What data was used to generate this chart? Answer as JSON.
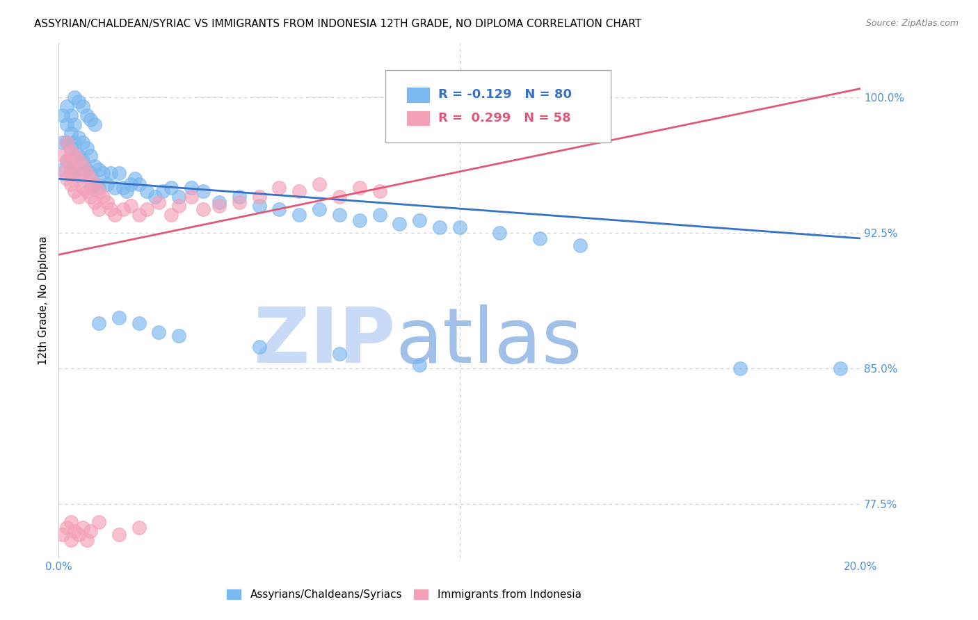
{
  "title": "ASSYRIAN/CHALDEAN/SYRIAC VS IMMIGRANTS FROM INDONESIA 12TH GRADE, NO DIPLOMA CORRELATION CHART",
  "source": "Source: ZipAtlas.com",
  "ylabel": "12th Grade, No Diploma",
  "y_ticks": [
    0.775,
    0.85,
    0.925,
    1.0
  ],
  "y_tick_labels": [
    "77.5%",
    "85.0%",
    "92.5%",
    "100.0%"
  ],
  "xlim": [
    0.0,
    0.2
  ],
  "ylim": [
    0.745,
    1.03
  ],
  "blue_R": -0.129,
  "blue_N": 80,
  "pink_R": 0.299,
  "pink_N": 58,
  "blue_color": "#7bb8ef",
  "pink_color": "#f4a0b8",
  "blue_trend_color": "#3572c6",
  "pink_trend_color": "#e05878",
  "watermark_zip_color": "#c8daf5",
  "watermark_atlas_color": "#a0c0e8",
  "legend_label_blue": "Assyrians/Chaldeans/Syriacs",
  "legend_label_pink": "Immigrants from Indonesia",
  "blue_trend_x0": 0.0,
  "blue_trend_x1": 0.2,
  "blue_trend_y0": 0.955,
  "blue_trend_y1": 0.922,
  "pink_trend_x0": 0.0,
  "pink_trend_x1": 0.2,
  "pink_trend_y0": 0.913,
  "pink_trend_y1": 1.005,
  "title_fontsize": 11,
  "axis_label_fontsize": 11,
  "tick_fontsize": 11,
  "legend_fontsize": 13,
  "source_fontsize": 9,
  "background_color": "#ffffff",
  "grid_color": "#cccccc",
  "tick_color": "#4a90d9",
  "blue_x": [
    0.001,
    0.001,
    0.001,
    0.002,
    0.002,
    0.002,
    0.002,
    0.003,
    0.003,
    0.003,
    0.003,
    0.003,
    0.004,
    0.004,
    0.004,
    0.004,
    0.005,
    0.005,
    0.005,
    0.006,
    0.006,
    0.006,
    0.007,
    0.007,
    0.008,
    0.008,
    0.008,
    0.009,
    0.009,
    0.01,
    0.01,
    0.011,
    0.012,
    0.013,
    0.014,
    0.015,
    0.016,
    0.017,
    0.018,
    0.019,
    0.02,
    0.022,
    0.024,
    0.026,
    0.028,
    0.03,
    0.033,
    0.036,
    0.04,
    0.045,
    0.05,
    0.055,
    0.06,
    0.065,
    0.07,
    0.075,
    0.08,
    0.085,
    0.09,
    0.095,
    0.1,
    0.11,
    0.12,
    0.13,
    0.004,
    0.005,
    0.006,
    0.007,
    0.008,
    0.009,
    0.01,
    0.015,
    0.02,
    0.025,
    0.03,
    0.05,
    0.07,
    0.09,
    0.17,
    0.195
  ],
  "blue_y": [
    0.99,
    0.975,
    0.96,
    0.995,
    0.985,
    0.975,
    0.965,
    0.99,
    0.98,
    0.972,
    0.965,
    0.958,
    0.985,
    0.975,
    0.968,
    0.96,
    0.978,
    0.968,
    0.96,
    0.975,
    0.965,
    0.958,
    0.972,
    0.96,
    0.968,
    0.958,
    0.95,
    0.962,
    0.952,
    0.96,
    0.95,
    0.958,
    0.952,
    0.958,
    0.95,
    0.958,
    0.95,
    0.948,
    0.952,
    0.955,
    0.952,
    0.948,
    0.945,
    0.948,
    0.95,
    0.945,
    0.95,
    0.948,
    0.942,
    0.945,
    0.94,
    0.938,
    0.935,
    0.938,
    0.935,
    0.932,
    0.935,
    0.93,
    0.932,
    0.928,
    0.928,
    0.925,
    0.922,
    0.918,
    1.0,
    0.998,
    0.995,
    0.99,
    0.988,
    0.985,
    0.875,
    0.878,
    0.875,
    0.87,
    0.868,
    0.862,
    0.858,
    0.852,
    0.85,
    0.85
  ],
  "pink_x": [
    0.001,
    0.001,
    0.002,
    0.002,
    0.002,
    0.003,
    0.003,
    0.003,
    0.004,
    0.004,
    0.004,
    0.005,
    0.005,
    0.005,
    0.006,
    0.006,
    0.007,
    0.007,
    0.008,
    0.008,
    0.009,
    0.009,
    0.01,
    0.01,
    0.011,
    0.012,
    0.013,
    0.014,
    0.016,
    0.018,
    0.02,
    0.022,
    0.025,
    0.028,
    0.03,
    0.033,
    0.036,
    0.04,
    0.045,
    0.05,
    0.055,
    0.06,
    0.065,
    0.07,
    0.075,
    0.08,
    0.001,
    0.002,
    0.003,
    0.003,
    0.004,
    0.005,
    0.006,
    0.007,
    0.008,
    0.01,
    0.015,
    0.02
  ],
  "pink_y": [
    0.968,
    0.958,
    0.975,
    0.965,
    0.955,
    0.97,
    0.962,
    0.952,
    0.968,
    0.958,
    0.948,
    0.965,
    0.955,
    0.945,
    0.962,
    0.95,
    0.958,
    0.948,
    0.955,
    0.945,
    0.952,
    0.942,
    0.948,
    0.938,
    0.945,
    0.942,
    0.938,
    0.935,
    0.938,
    0.94,
    0.935,
    0.938,
    0.942,
    0.935,
    0.94,
    0.945,
    0.938,
    0.94,
    0.942,
    0.945,
    0.95,
    0.948,
    0.952,
    0.945,
    0.95,
    0.948,
    0.758,
    0.762,
    0.755,
    0.765,
    0.76,
    0.758,
    0.762,
    0.755,
    0.76,
    0.765,
    0.758,
    0.762
  ]
}
